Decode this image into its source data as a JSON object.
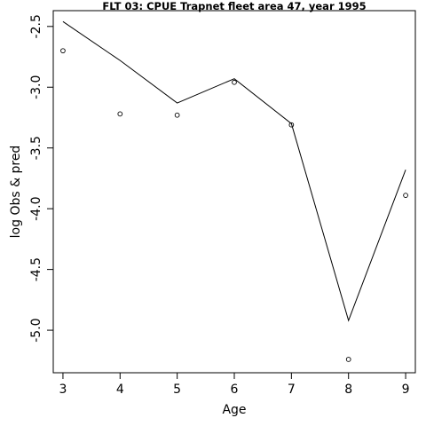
{
  "chart_data": {
    "type": "line",
    "title": "FLT 03: CPUE Trapnet fleet area 47, year 1995",
    "xlabel": "Age",
    "ylabel": "log Obs & pred",
    "x": [
      3,
      4,
      5,
      6,
      7,
      8,
      9
    ],
    "xlim": [
      2.83,
      9.17
    ],
    "ylim": [
      -5.35,
      -2.37
    ],
    "x_ticks": [
      3,
      4,
      5,
      6,
      7,
      8,
      9
    ],
    "y_ticks": [
      -2.5,
      -3.0,
      -3.5,
      -4.0,
      -4.5,
      -5.0
    ],
    "y_tick_labels": [
      "-2.5",
      "-3.0",
      "-3.5",
      "-4.0",
      "-4.5",
      "-5.0"
    ],
    "grid": false,
    "series": [
      {
        "role": "predicted",
        "style": "line",
        "values": [
          -2.46,
          -2.78,
          -3.13,
          -2.93,
          -3.3,
          -4.92,
          -3.68
        ]
      },
      {
        "role": "observed",
        "style": "points",
        "values": [
          -2.7,
          -3.22,
          -3.23,
          -2.96,
          -3.31,
          -5.24,
          -3.89
        ]
      }
    ],
    "colors": {
      "line": "#000000",
      "points": "#000000",
      "frame": "#000000"
    }
  }
}
